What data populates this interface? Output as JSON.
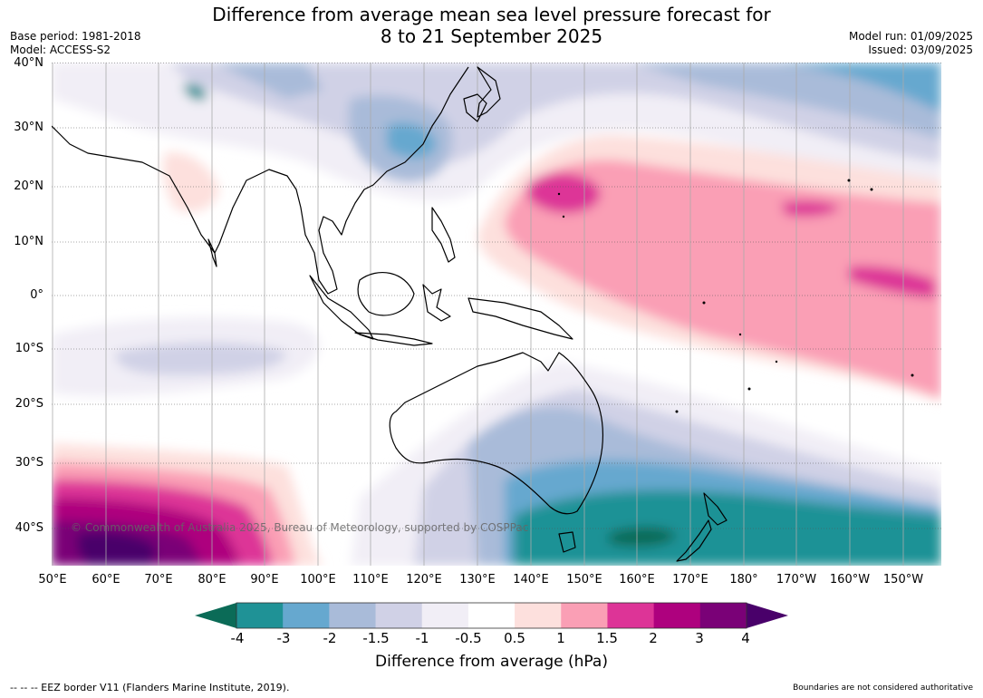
{
  "title_line1": "Difference from average mean sea level pressure forecast for",
  "title_line2": "8 to 21 September 2025",
  "base_period": "Base period: 1981-2018",
  "model": "Model: ACCESS-S2",
  "model_run": "Model run: 01/09/2025",
  "issued": "Issued: 03/09/2025",
  "lat_labels": [
    "40°N",
    "30°N",
    "20°N",
    "10°N",
    "0°",
    "10°S",
    "20°S",
    "30°S",
    "40°S"
  ],
  "lon_labels": [
    "50°E",
    "60°E",
    "70°E",
    "80°E",
    "90°E",
    "100°E",
    "110°E",
    "120°E",
    "130°E",
    "140°E",
    "150°E",
    "160°E",
    "170°E",
    "180°",
    "170°W",
    "160°W",
    "150°W"
  ],
  "colorbar": {
    "ticks": [
      "-4",
      "-3",
      "-2",
      "-1.5",
      "-1",
      "-0.5",
      "0.5",
      "1",
      "1.5",
      "2",
      "3",
      "4"
    ],
    "colors": [
      "#0b6b57",
      "#1f9296",
      "#66a8cf",
      "#a9bbd9",
      "#d0d1e6",
      "#f1eef6",
      "#ffffff",
      "#fde0dd",
      "#fa9fb5",
      "#dd3497",
      "#ae017e",
      "#7a0177",
      "#49006a"
    ],
    "title": "Difference from average (hPa)"
  },
  "copyright": "© Commonwealth of Australia 2025, Bureau of Meteorology, supported by COSPPac",
  "footer_left": "--  --  -- EEZ border V11 (Flanders Marine Institute, 2019).",
  "footer_right": "Boundaries are not considered authoritative"
}
